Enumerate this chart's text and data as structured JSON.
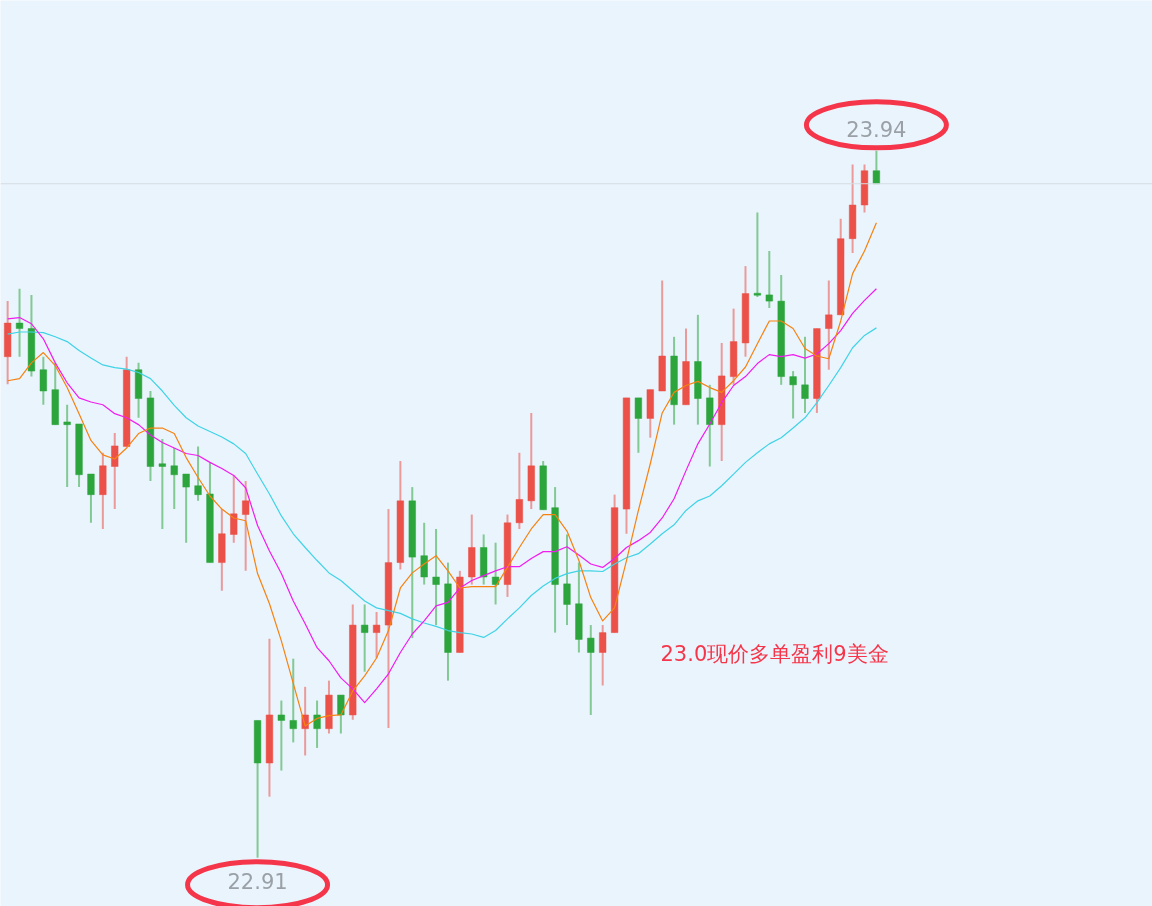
{
  "chart_data": {
    "type": "candlestick",
    "categories": [
      null,
      null,
      null,
      null,
      null,
      null,
      null,
      null,
      null,
      null,
      null,
      null,
      null,
      null,
      null,
      null,
      null,
      null,
      null,
      null,
      null,
      null,
      null,
      null,
      null,
      null,
      null,
      null,
      null,
      null,
      null,
      null,
      null,
      null,
      null,
      null,
      null,
      null,
      null,
      null,
      null,
      null,
      null,
      null,
      null,
      null,
      null,
      null,
      null,
      null,
      null,
      null,
      null,
      null,
      null,
      null,
      null,
      null,
      null,
      null,
      null,
      null,
      null,
      null,
      null,
      null,
      null,
      null,
      null,
      null,
      null,
      null,
      null,
      null
    ],
    "ohlc": [
      [
        23.64,
        23.721,
        23.6,
        23.689
      ],
      [
        23.689,
        23.739,
        23.64,
        23.681
      ],
      [
        23.681,
        23.73,
        23.611,
        23.619
      ],
      [
        23.621,
        23.64,
        23.57,
        23.59
      ],
      [
        23.592,
        23.631,
        23.541,
        23.541
      ],
      [
        23.545,
        23.57,
        23.45,
        23.541
      ],
      [
        23.542,
        23.542,
        23.45,
        23.468
      ],
      [
        23.469,
        23.469,
        23.398,
        23.439
      ],
      [
        23.439,
        23.5,
        23.389,
        23.481
      ],
      [
        23.48,
        23.529,
        23.418,
        23.51
      ],
      [
        23.509,
        23.64,
        23.509,
        23.621
      ],
      [
        23.621,
        23.631,
        23.551,
        23.579
      ],
      [
        23.58,
        23.59,
        23.459,
        23.48
      ],
      [
        23.484,
        23.52,
        23.389,
        23.48
      ],
      [
        23.481,
        23.507,
        23.418,
        23.468
      ],
      [
        23.469,
        23.469,
        23.369,
        23.45
      ],
      [
        23.452,
        23.509,
        23.43,
        23.439
      ],
      [
        23.44,
        23.485,
        23.34,
        23.34
      ],
      [
        23.34,
        23.418,
        23.299,
        23.382
      ],
      [
        23.381,
        23.467,
        23.369,
        23.411
      ],
      [
        23.41,
        23.459,
        23.328,
        23.43
      ],
      [
        23.11,
        23.11,
        22.91,
        23.048
      ],
      [
        23.048,
        23.229,
        22.999,
        23.118
      ],
      [
        23.118,
        23.139,
        23.037,
        23.11
      ],
      [
        23.11,
        23.2,
        23.078,
        23.098
      ],
      [
        23.098,
        23.159,
        23.059,
        23.118
      ],
      [
        23.118,
        23.139,
        23.07,
        23.098
      ],
      [
        23.098,
        23.168,
        23.091,
        23.147
      ],
      [
        23.147,
        23.147,
        23.091,
        23.118
      ],
      [
        23.118,
        23.279,
        23.111,
        23.249
      ],
      [
        23.249,
        23.279,
        23.181,
        23.238
      ],
      [
        23.238,
        23.268,
        23.201,
        23.249
      ],
      [
        23.249,
        23.418,
        23.099,
        23.34
      ],
      [
        23.34,
        23.488,
        23.33,
        23.43
      ],
      [
        23.43,
        23.45,
        23.23,
        23.348
      ],
      [
        23.35,
        23.398,
        23.308,
        23.319
      ],
      [
        23.319,
        23.389,
        23.249,
        23.308
      ],
      [
        23.309,
        23.34,
        23.168,
        23.209
      ],
      [
        23.209,
        23.328,
        23.209,
        23.319
      ],
      [
        23.319,
        23.41,
        23.308,
        23.362
      ],
      [
        23.362,
        23.381,
        23.308,
        23.319
      ],
      [
        23.319,
        23.369,
        23.279,
        23.308
      ],
      [
        23.308,
        23.41,
        23.29,
        23.398
      ],
      [
        23.398,
        23.5,
        23.389,
        23.432
      ],
      [
        23.43,
        23.558,
        23.418,
        23.481
      ],
      [
        23.481,
        23.488,
        23.417,
        23.417
      ],
      [
        23.42,
        23.45,
        23.238,
        23.308
      ],
      [
        23.309,
        23.381,
        23.249,
        23.279
      ],
      [
        23.28,
        23.34,
        23.209,
        23.228
      ],
      [
        23.23,
        23.249,
        23.118,
        23.209
      ],
      [
        23.209,
        23.249,
        23.161,
        23.238
      ],
      [
        23.238,
        23.439,
        23.238,
        23.42
      ],
      [
        23.418,
        23.58,
        23.382,
        23.58
      ],
      [
        23.58,
        23.58,
        23.5,
        23.55
      ],
      [
        23.55,
        23.592,
        23.522,
        23.592
      ],
      [
        23.59,
        23.751,
        23.59,
        23.641
      ],
      [
        23.641,
        23.669,
        23.541,
        23.57
      ],
      [
        23.57,
        23.681,
        23.57,
        23.633
      ],
      [
        23.633,
        23.701,
        23.541,
        23.579
      ],
      [
        23.58,
        23.599,
        23.48,
        23.541
      ],
      [
        23.541,
        23.66,
        23.488,
        23.612
      ],
      [
        23.611,
        23.71,
        23.599,
        23.662
      ],
      [
        23.66,
        23.772,
        23.64,
        23.732
      ],
      [
        23.732,
        23.85,
        23.727,
        23.73
      ],
      [
        23.73,
        23.794,
        23.711,
        23.721
      ],
      [
        23.721,
        23.759,
        23.599,
        23.611
      ],
      [
        23.611,
        23.619,
        23.55,
        23.599
      ],
      [
        23.599,
        23.669,
        23.558,
        23.579
      ],
      [
        23.579,
        23.681,
        23.558,
        23.681
      ],
      [
        23.681,
        23.751,
        23.621,
        23.701
      ],
      [
        23.701,
        23.841,
        23.701,
        23.812
      ],
      [
        23.812,
        23.92,
        23.791,
        23.861
      ],
      [
        23.861,
        23.92,
        23.85,
        23.911
      ],
      [
        23.911,
        23.94,
        23.892,
        23.892
      ]
    ],
    "colors": [
      "#eb5148",
      "#2ca53c",
      "#2ca53c",
      "#2ca53c",
      "#2ca53c",
      "#2ca53c",
      "#2ca53c",
      "#2ca53c",
      "#eb5148",
      "#eb5148",
      "#eb5148",
      "#2ca53c",
      "#2ca53c",
      "#2ca53c",
      "#2ca53c",
      "#2ca53c",
      "#2ca53c",
      "#2ca53c",
      "#eb5148",
      "#eb5148",
      "#eb5148",
      "#2ca53c",
      "#eb5148",
      "#2ca53c",
      "#2ca53c",
      "#eb5148",
      "#2ca53c",
      "#eb5148",
      "#2ca53c",
      "#eb5148",
      "#2ca53c",
      "#eb5148",
      "#eb5148",
      "#eb5148",
      "#2ca53c",
      "#2ca53c",
      "#2ca53c",
      "#2ca53c",
      "#eb5148",
      "#eb5148",
      "#2ca53c",
      "#2ca53c",
      "#eb5148",
      "#eb5148",
      "#eb5148",
      "#2ca53c",
      "#2ca53c",
      "#2ca53c",
      "#2ca53c",
      "#2ca53c",
      "#eb5148",
      "#eb5148",
      "#eb5148",
      "#2ca53c",
      "#eb5148",
      "#eb5148",
      "#2ca53c",
      "#eb5148",
      "#2ca53c",
      "#2ca53c",
      "#eb5148",
      "#eb5148",
      "#eb5148",
      "#2ca53c",
      "#2ca53c",
      "#2ca53c",
      "#2ca53c",
      "#2ca53c",
      "#eb5148",
      "#eb5148",
      "#eb5148",
      "#eb5148",
      "#eb5148",
      "#2ca53c"
    ],
    "series": [
      {
        "type": "line",
        "color": "#3fd3e6",
        "values": [
          23.673,
          23.676,
          23.676,
          23.675,
          23.669,
          23.662,
          23.649,
          23.638,
          23.628,
          23.624,
          23.622,
          23.617,
          23.608,
          23.59,
          23.569,
          23.551,
          23.539,
          23.531,
          23.523,
          23.513,
          23.499,
          23.469,
          23.44,
          23.408,
          23.382,
          23.362,
          23.343,
          23.325,
          23.314,
          23.299,
          23.284,
          23.274,
          23.27,
          23.266,
          23.258,
          23.252,
          23.247,
          23.241,
          23.238,
          23.236,
          23.231,
          23.241,
          23.258,
          23.274,
          23.292,
          23.306,
          23.317,
          23.324,
          23.328,
          23.328,
          23.327,
          23.338,
          23.347,
          23.353,
          23.367,
          23.382,
          23.395,
          23.416,
          23.43,
          23.437,
          23.452,
          23.469,
          23.486,
          23.5,
          23.513,
          23.522,
          23.536,
          23.551,
          23.573,
          23.598,
          23.624,
          23.653,
          23.671,
          23.682
        ]
      },
      {
        "type": "line",
        "color": "#f01cf0",
        "values": [
          23.695,
          23.697,
          23.688,
          23.666,
          23.631,
          23.602,
          23.58,
          23.574,
          23.57,
          23.557,
          23.551,
          23.541,
          23.526,
          23.515,
          23.507,
          23.499,
          23.496,
          23.486,
          23.477,
          23.467,
          23.449,
          23.394,
          23.357,
          23.324,
          23.284,
          23.251,
          23.216,
          23.197,
          23.172,
          23.156,
          23.136,
          23.156,
          23.178,
          23.209,
          23.236,
          23.255,
          23.277,
          23.282,
          23.303,
          23.314,
          23.321,
          23.328,
          23.334,
          23.334,
          23.346,
          23.356,
          23.356,
          23.363,
          23.351,
          23.338,
          23.333,
          23.346,
          23.362,
          23.372,
          23.384,
          23.405,
          23.433,
          23.474,
          23.513,
          23.542,
          23.573,
          23.598,
          23.611,
          23.63,
          23.643,
          23.64,
          23.643,
          23.638,
          23.644,
          23.659,
          23.678,
          23.703,
          23.722,
          23.739
        ]
      },
      {
        "type": "line",
        "color": "#f7820f",
        "values": [
          23.605,
          23.608,
          23.631,
          23.646,
          23.627,
          23.595,
          23.557,
          23.518,
          23.497,
          23.491,
          23.507,
          23.528,
          23.536,
          23.536,
          23.528,
          23.493,
          23.464,
          23.437,
          23.418,
          23.405,
          23.401,
          23.324,
          23.28,
          23.226,
          23.164,
          23.102,
          23.113,
          23.117,
          23.118,
          23.153,
          23.175,
          23.201,
          23.241,
          23.303,
          23.325,
          23.338,
          23.35,
          23.328,
          23.303,
          23.305,
          23.305,
          23.305,
          23.333,
          23.362,
          23.389,
          23.41,
          23.41,
          23.386,
          23.343,
          23.289,
          23.255,
          23.274,
          23.343,
          23.416,
          23.484,
          23.558,
          23.588,
          23.598,
          23.604,
          23.595,
          23.588,
          23.605,
          23.625,
          23.659,
          23.692,
          23.692,
          23.681,
          23.652,
          23.641,
          23.637,
          23.692,
          23.761,
          23.794,
          23.835
        ]
      }
    ],
    "ref_lines": [
      {
        "axis": "y",
        "value": 23.892,
        "color": "#d5dce3"
      }
    ],
    "annotations": [
      {
        "text": "23.94",
        "y": 23.94
      },
      {
        "text": "22.91",
        "y": 22.91
      },
      "23.0现价多单盈利9美金"
    ]
  }
}
